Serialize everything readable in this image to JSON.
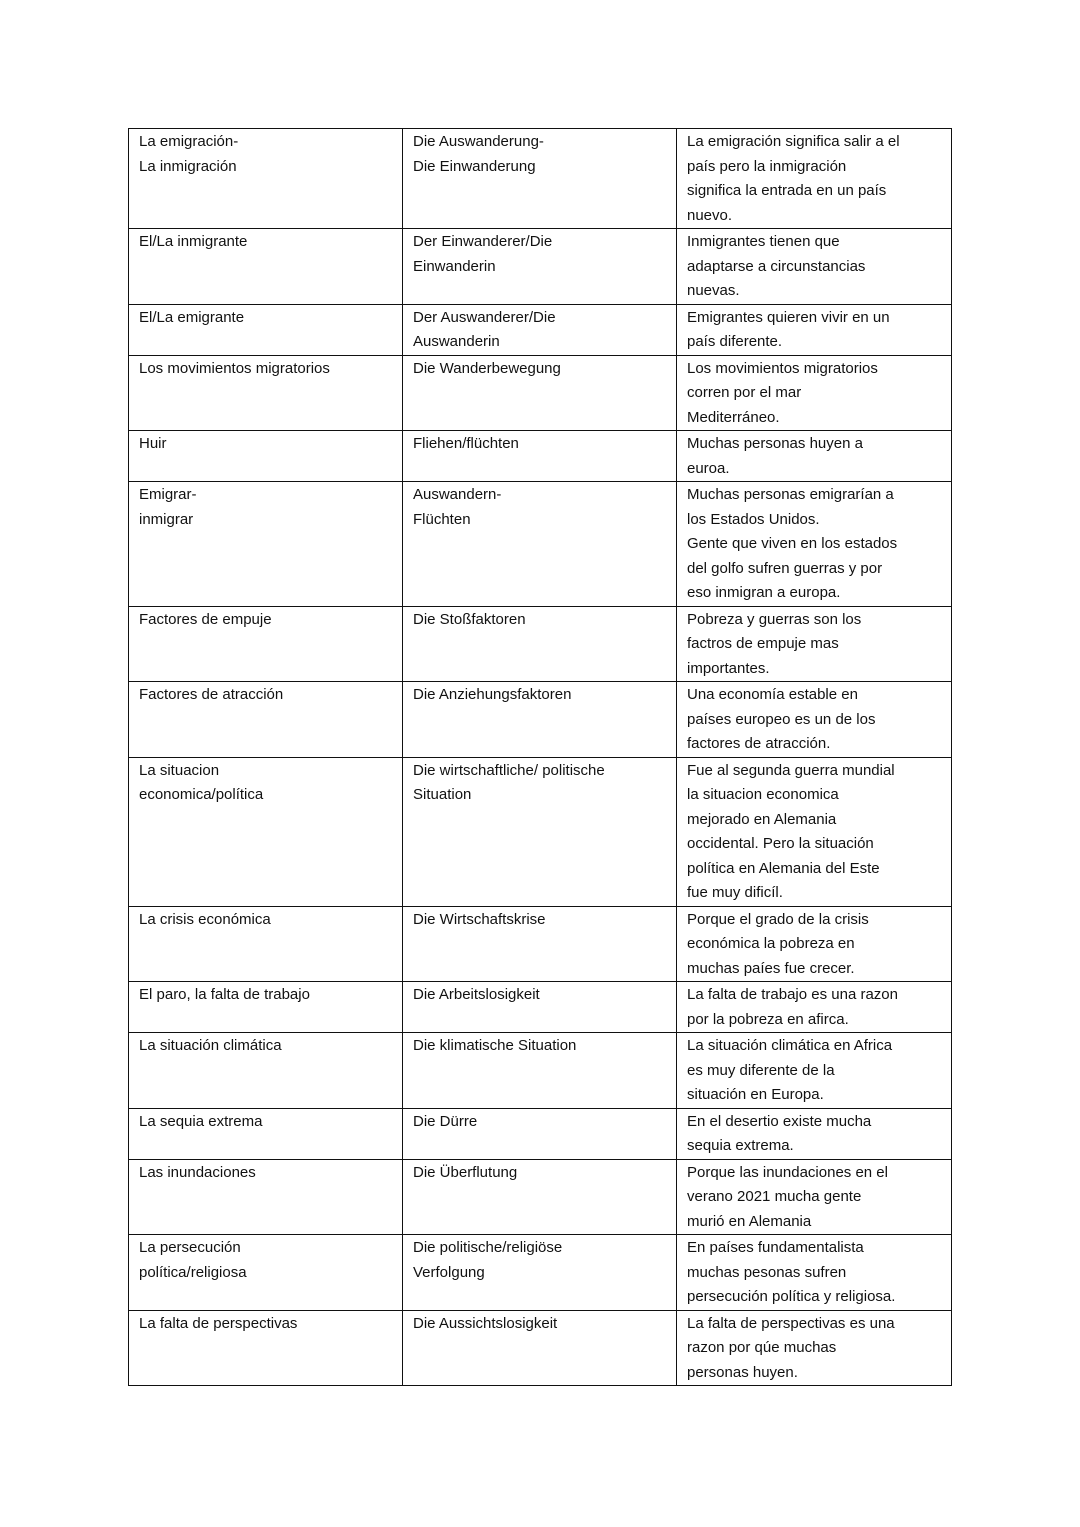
{
  "table": {
    "rows": [
      [
        [
          "La emigración-",
          "La inmigración"
        ],
        [
          "Die Auswanderung-",
          "Die Einwanderung"
        ],
        [
          "La emigración significa salir a el",
          "país pero la inmigración",
          "significa la entrada en un país",
          "nuevo."
        ]
      ],
      [
        [
          "El/La inmigrante"
        ],
        [
          "Der Einwanderer/Die",
          "Einwanderin"
        ],
        [
          "Inmigrantes tienen que",
          "adaptarse a circunstancias",
          "nuevas."
        ]
      ],
      [
        [
          "El/La emigrante"
        ],
        [
          "Der Auswanderer/Die",
          "Auswanderin"
        ],
        [
          "Emigrantes quieren vivir en un",
          "país diferente."
        ]
      ],
      [
        [
          "Los movimientos migratorios"
        ],
        [
          "Die Wanderbewegung"
        ],
        [
          "Los movimientos migratorios",
          "corren por el mar",
          "Mediterráneo."
        ]
      ],
      [
        [
          "Huir"
        ],
        [
          "Fliehen/flüchten"
        ],
        [
          "Muchas personas huyen a",
          "euroa."
        ]
      ],
      [
        [
          "Emigrar-",
          "inmigrar"
        ],
        [
          "Auswandern-",
          "Flüchten"
        ],
        [
          "Muchas personas emigrarían a",
          "los Estados Unidos.",
          "Gente que viven en los estados",
          "del golfo sufren guerras y por",
          "eso inmigran a europa."
        ]
      ],
      [
        [
          "Factores de empuje"
        ],
        [
          "Die Stoßfaktoren"
        ],
        [
          "Pobreza y guerras son los",
          "factros de empuje mas",
          "importantes."
        ]
      ],
      [
        [
          "Factores de atracción"
        ],
        [
          "Die Anziehungsfaktoren"
        ],
        [
          "Una economía estable en",
          "países europeo es un de los",
          "factores de atracción."
        ]
      ],
      [
        [
          "La situacion",
          "economica/política"
        ],
        [
          "Die wirtschaftliche/ politische",
          "Situation"
        ],
        [
          "Fue al segunda guerra mundial",
          "la situacion economica",
          "mejorado en Alemania",
          "occidental. Pero la situación",
          "política en Alemania del Este",
          "fue muy dificíl."
        ]
      ],
      [
        [
          "La crisis económica"
        ],
        [
          "Die Wirtschaftskrise"
        ],
        [
          "Porque el grado de la crisis",
          "económica la pobreza en",
          "muchas paíes fue crecer."
        ]
      ],
      [
        [
          "El paro, la falta de trabajo"
        ],
        [
          "Die Arbeitslosigkeit"
        ],
        [
          "La falta de trabajo es una razon",
          "por la pobreza en afirca."
        ]
      ],
      [
        [
          "La situación climática"
        ],
        [
          "Die klimatische Situation"
        ],
        [
          "La situación climática en Africa",
          "es muy diferente de la",
          "situación en Europa."
        ]
      ],
      [
        [
          "La sequia extrema"
        ],
        [
          "Die Dürre"
        ],
        [
          "En el desertio existe mucha",
          "sequia extrema."
        ]
      ],
      [
        [
          "Las inundaciones"
        ],
        [
          "Die Überflutung"
        ],
        [
          "Porque las inundaciones en el",
          "verano 2021 mucha gente",
          "murió en Alemania"
        ]
      ],
      [
        [
          "La persecución",
          "política/religiosa"
        ],
        [
          "Die politische/religiöse",
          "Verfolgung"
        ],
        [
          "En países fundamentalista",
          "muchas pesonas sufren",
          "persecución política y religiosa."
        ]
      ],
      [
        [
          "La falta de perspectivas"
        ],
        [
          "Die Aussichtslosigkeit"
        ],
        [
          "La falta de perspectivas es una",
          "razon por qúe muchas",
          "personas huyen."
        ]
      ]
    ]
  }
}
